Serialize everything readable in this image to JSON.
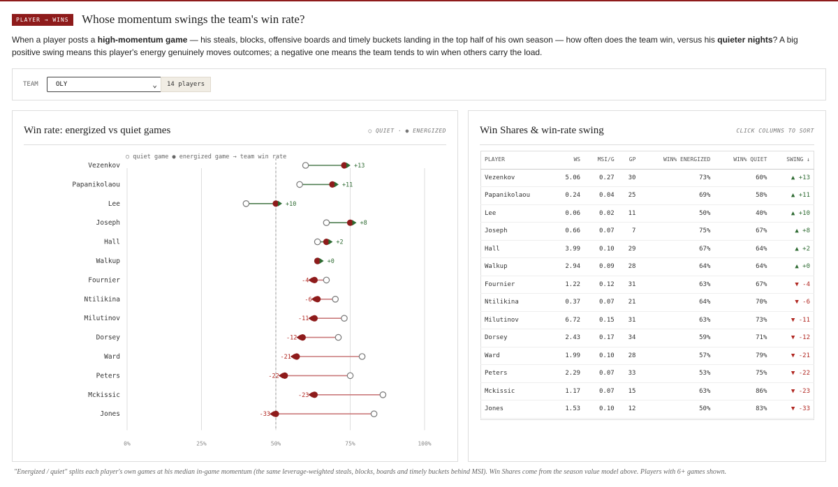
{
  "header": {
    "tag": "PLAYER → WINS",
    "title": "Whose momentum swings the team's win rate?",
    "desc": [
      "When a player posts a ",
      "high-momentum game",
      " — his steals, blocks, offensive boards and timely buckets landing in the top half of his own season — how often does the team win, versus his ",
      "quieter nights",
      "? A big positive swing means this player's energy genuinely moves outcomes; a negative one means the team tends to win when others carry the load."
    ]
  },
  "filters": {
    "team_label": "TEAM",
    "team_value": "OLY",
    "players_badge": "14 players"
  },
  "left_panel": {
    "title": "Win rate: energized vs quiet games",
    "legend_note": "○ QUIET · ● ENERGIZED",
    "chart_legend": "○ quiet game ● energized game → team win rate"
  },
  "right_panel": {
    "title": "Win Shares & win-rate swing",
    "sort_hint": "CLICK COLUMNS TO SORT",
    "columns": [
      "PLAYER",
      "WS",
      "MSI/G",
      "GP",
      "WIN% ENERGIZED",
      "WIN% QUIET",
      "SWING ↓"
    ],
    "rows": [
      [
        "Vezenkov",
        "5.06",
        "0.27",
        "30",
        "73%",
        "60%",
        "▲ +13"
      ],
      [
        "Papanikolaou",
        "0.24",
        "0.04",
        "25",
        "69%",
        "58%",
        "▲ +11"
      ],
      [
        "Lee",
        "0.06",
        "0.02",
        "11",
        "50%",
        "40%",
        "▲ +10"
      ],
      [
        "Joseph",
        "0.66",
        "0.07",
        "7",
        "75%",
        "67%",
        "▲ +8"
      ],
      [
        "Hall",
        "3.99",
        "0.10",
        "29",
        "67%",
        "64%",
        "▲ +2"
      ],
      [
        "Walkup",
        "2.94",
        "0.09",
        "28",
        "64%",
        "64%",
        "▲ +0"
      ],
      [
        "Fournier",
        "1.22",
        "0.12",
        "31",
        "63%",
        "67%",
        "▼ -4"
      ],
      [
        "Ntilikina",
        "0.37",
        "0.07",
        "21",
        "64%",
        "70%",
        "▼ -6"
      ],
      [
        "Milutinov",
        "6.72",
        "0.15",
        "31",
        "63%",
        "73%",
        "▼ -11"
      ],
      [
        "Dorsey",
        "2.43",
        "0.17",
        "34",
        "59%",
        "71%",
        "▼ -12"
      ],
      [
        "Ward",
        "1.99",
        "0.10",
        "28",
        "57%",
        "79%",
        "▼ -21"
      ],
      [
        "Peters",
        "2.29",
        "0.07",
        "33",
        "53%",
        "75%",
        "▼ -22"
      ],
      [
        "Mckissic",
        "1.17",
        "0.07",
        "15",
        "63%",
        "86%",
        "▼ -23"
      ],
      [
        "Jones",
        "1.53",
        "0.10",
        "12",
        "50%",
        "83%",
        "▼ -33"
      ]
    ]
  },
  "footer": "\"Energized / quiet\" splits each player's own games at his median in-game momentum (the same leverage-weighted steals, blocks, boards and timely buckets behind MSI). Win Shares come from the season value model above. Players with 6+ games shown.",
  "colors": {
    "accent": "#8e1b1b",
    "positive": "#2d6a31",
    "negative": "#b0251f"
  },
  "chart_data": {
    "type": "dumbbell",
    "x_ticks": [
      "0%",
      "25%",
      "50%",
      "75%",
      "100%"
    ],
    "xlim": [
      0,
      100
    ],
    "reference_line": 50,
    "series": [
      {
        "name": "quiet game"
      },
      {
        "name": "energized game"
      }
    ],
    "players": [
      {
        "name": "Vezenkov",
        "quiet": 60,
        "energized": 73,
        "swing": "+13"
      },
      {
        "name": "Papanikolaou",
        "quiet": 58,
        "energized": 69,
        "swing": "+11"
      },
      {
        "name": "Lee",
        "quiet": 40,
        "energized": 50,
        "swing": "+10"
      },
      {
        "name": "Joseph",
        "quiet": 67,
        "energized": 75,
        "swing": "+8"
      },
      {
        "name": "Hall",
        "quiet": 64,
        "energized": 67,
        "swing": "+2"
      },
      {
        "name": "Walkup",
        "quiet": 64,
        "energized": 64,
        "swing": "+0"
      },
      {
        "name": "Fournier",
        "quiet": 67,
        "energized": 63,
        "swing": "-4"
      },
      {
        "name": "Ntilikina",
        "quiet": 70,
        "energized": 64,
        "swing": "-6"
      },
      {
        "name": "Milutinov",
        "quiet": 73,
        "energized": 63,
        "swing": "-11"
      },
      {
        "name": "Dorsey",
        "quiet": 71,
        "energized": 59,
        "swing": "-12"
      },
      {
        "name": "Ward",
        "quiet": 79,
        "energized": 57,
        "swing": "-21"
      },
      {
        "name": "Peters",
        "quiet": 75,
        "energized": 53,
        "swing": "-22"
      },
      {
        "name": "Mckissic",
        "quiet": 86,
        "energized": 63,
        "swing": "-23"
      },
      {
        "name": "Jones",
        "quiet": 83,
        "energized": 50,
        "swing": "-33"
      }
    ]
  }
}
